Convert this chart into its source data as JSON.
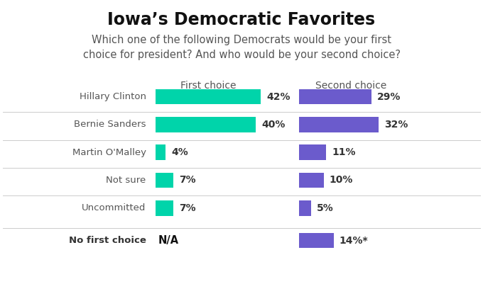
{
  "title": "Iowa’s Democratic Favorites",
  "subtitle": "Which one of the following Democrats would be your first\nchoice for president? And who would be your second choice?",
  "categories": [
    "Hillary Clinton",
    "Bernie Sanders",
    "Martin O'Malley",
    "Not sure",
    "Uncommitted",
    "No first choice"
  ],
  "first_choice_values": [
    42,
    40,
    4,
    7,
    7,
    null
  ],
  "second_choice_values": [
    29,
    32,
    11,
    10,
    5,
    14
  ],
  "first_choice_labels": [
    "42%",
    "40%",
    "4%",
    "7%",
    "7%",
    "N/A"
  ],
  "second_choice_labels": [
    "29%",
    "32%",
    "11%",
    "10%",
    "5%",
    "14%*"
  ],
  "first_choice_color": "#00D4AA",
  "second_choice_color": "#6B5BCC",
  "col_header_first": "First choice",
  "col_header_second": "Second choice",
  "background_color": "#FFFFFF",
  "text_color": "#333333",
  "divider_color": "#CCCCCC",
  "title_fontsize": 17,
  "subtitle_fontsize": 10.5,
  "label_fontsize": 10,
  "header_fontsize": 10,
  "max_bar_value": 42
}
